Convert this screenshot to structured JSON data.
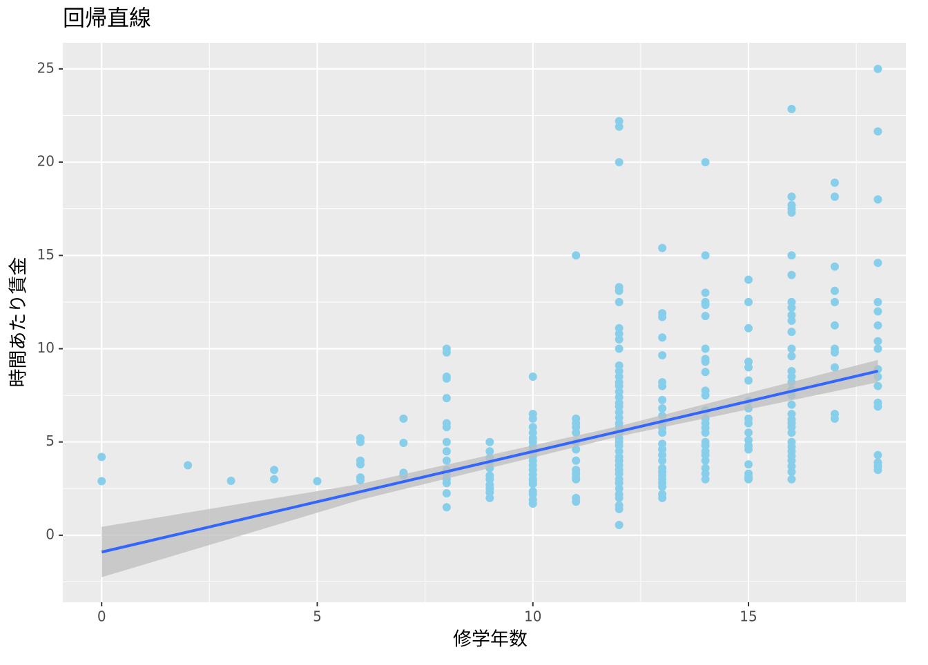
{
  "chart_data": {
    "type": "scatter",
    "title": "回帰直線",
    "x_label": "修学年数",
    "y_label": "時間あたり賃金",
    "color": "#87ceeb",
    "line_color": "#3366ff",
    "band_color": "#bdbdbd",
    "grid": true,
    "xlim": [
      -0.9,
      18.65
    ],
    "ylim": [
      -3.59,
      26.4
    ],
    "xticks": [
      0,
      5,
      10,
      15
    ],
    "yticks": [
      0,
      5,
      10,
      15,
      20,
      25
    ],
    "x_minor_ticks": [
      2.5,
      7.5,
      12.5,
      17.5
    ],
    "y_minor_ticks": [
      -2.5,
      2.5,
      7.5,
      12.5,
      17.5,
      22.5
    ],
    "fit": {
      "x": [
        0,
        18
      ],
      "y": [
        -0.9,
        8.8
      ]
    },
    "band": {
      "x": [
        0,
        6,
        12,
        18
      ],
      "lower": [
        -2.25,
        1.9,
        5.3,
        8.2
      ],
      "upper": [
        0.45,
        2.75,
        5.85,
        9.4
      ]
    },
    "x": [
      0,
      0,
      2,
      3,
      4,
      4,
      5,
      6,
      6,
      6,
      6,
      6,
      6,
      7,
      7,
      7,
      7,
      8,
      8,
      8,
      8,
      8,
      8,
      8,
      8,
      8,
      8,
      8,
      8,
      8,
      8,
      8,
      8,
      9,
      9,
      9,
      9,
      9,
      9,
      9,
      9,
      9,
      9,
      9,
      10,
      10,
      10,
      10,
      10,
      10,
      10,
      10,
      10,
      10,
      10,
      10,
      10,
      10,
      10,
      10,
      10,
      10,
      10,
      10,
      10,
      11,
      11,
      11,
      11,
      11,
      11,
      11,
      11,
      11,
      11,
      11,
      11,
      11,
      11,
      12,
      12,
      12,
      12,
      12,
      12,
      12,
      12,
      12,
      12,
      12,
      12,
      12,
      12,
      12,
      12,
      12,
      12,
      12,
      12,
      12,
      12,
      12,
      12,
      12,
      12,
      12,
      12,
      12,
      12,
      12,
      12,
      12,
      12,
      12,
      12,
      12,
      12,
      12,
      12,
      12,
      13,
      13,
      13,
      13,
      13,
      13,
      13,
      13,
      13,
      13,
      13,
      13,
      13,
      13,
      13,
      13,
      13,
      13,
      13,
      13,
      13,
      13,
      13,
      13,
      13,
      14,
      14,
      14,
      14,
      14,
      14,
      14,
      14,
      14,
      14,
      14,
      14,
      14,
      14,
      14,
      14,
      14,
      14,
      14,
      14,
      14,
      14,
      14,
      14,
      14,
      15,
      15,
      15,
      15,
      15,
      15,
      15,
      15,
      15,
      15,
      15,
      15,
      15,
      15,
      15,
      15,
      15,
      15,
      16,
      16,
      16,
      16,
      16,
      16,
      16,
      16,
      16,
      16,
      16,
      16,
      16,
      16,
      16,
      16,
      16,
      16,
      16,
      16,
      16,
      16,
      16,
      16,
      16,
      16,
      16,
      16,
      16,
      16,
      16,
      16,
      16,
      17,
      17,
      17,
      17,
      17,
      17,
      17,
      17,
      17,
      17,
      17,
      18,
      18,
      18,
      18,
      18,
      18,
      18,
      18,
      18,
      18,
      18,
      18,
      18,
      18,
      18,
      18,
      18,
      18
    ],
    "y": [
      4.2,
      2.9,
      3.75,
      2.92,
      3.5,
      3.0,
      2.9,
      5.2,
      5.0,
      4.0,
      3.8,
      3.1,
      2.95,
      6.25,
      4.95,
      3.35,
      3.2,
      10.0,
      9.8,
      8.5,
      8.4,
      7.35,
      6.0,
      5.8,
      5.0,
      4.5,
      4.0,
      3.5,
      3.3,
      3.0,
      2.8,
      2.25,
      1.5,
      5.0,
      4.5,
      4.15,
      3.9,
      3.6,
      3.2,
      3.0,
      2.7,
      2.5,
      2.3,
      2.0,
      8.5,
      6.5,
      6.25,
      5.8,
      5.5,
      5.2,
      5.0,
      4.75,
      4.5,
      4.25,
      4.0,
      3.75,
      3.5,
      3.25,
      3.0,
      2.9,
      2.75,
      2.35,
      2.2,
      1.9,
      1.7,
      15.0,
      6.25,
      6.0,
      5.8,
      5.5,
      5.0,
      4.6,
      4.0,
      3.5,
      3.3,
      3.1,
      3.0,
      2.0,
      1.8,
      22.2,
      21.9,
      20.0,
      13.3,
      13.1,
      12.5,
      11.1,
      10.8,
      10.5,
      10.0,
      9.1,
      8.8,
      8.5,
      8.2,
      8.0,
      7.7,
      7.4,
      7.1,
      6.9,
      6.6,
      6.3,
      6.0,
      5.8,
      5.5,
      5.2,
      5.0,
      4.8,
      4.5,
      4.2,
      4.0,
      3.75,
      3.5,
      3.3,
      3.0,
      2.8,
      2.5,
      2.2,
      2.0,
      1.6,
      1.4,
      0.55,
      15.4,
      11.9,
      11.7,
      10.6,
      9.65,
      8.2,
      8.0,
      7.25,
      6.8,
      6.4,
      6.0,
      5.75,
      5.5,
      4.9,
      4.6,
      4.3,
      4.0,
      3.6,
      3.4,
      3.2,
      3.0,
      2.8,
      2.6,
      2.2,
      2.0,
      20.0,
      15.0,
      13.0,
      12.5,
      12.35,
      11.75,
      10.0,
      9.45,
      9.3,
      8.75,
      7.75,
      7.5,
      6.7,
      6.25,
      6.0,
      5.75,
      5.5,
      5.0,
      4.8,
      4.5,
      4.3,
      4.0,
      3.6,
      3.3,
      3.0,
      13.7,
      12.5,
      11.1,
      9.3,
      9.0,
      8.3,
      7.2,
      6.8,
      6.25,
      6.0,
      5.5,
      5.1,
      4.8,
      4.6,
      3.8,
      3.3,
      3.1,
      3.0,
      22.85,
      18.15,
      17.7,
      17.5,
      17.3,
      15.0,
      13.95,
      12.5,
      12.2,
      11.8,
      11.5,
      10.9,
      10.0,
      9.6,
      8.8,
      8.5,
      8.2,
      7.8,
      7.5,
      7.0,
      6.5,
      6.2,
      6.0,
      5.8,
      5.5,
      5.0,
      4.75,
      4.5,
      4.25,
      4.0,
      3.7,
      3.4,
      3.0,
      18.9,
      18.15,
      14.4,
      13.1,
      12.5,
      11.25,
      10.0,
      9.8,
      9.0,
      6.5,
      6.25,
      25.0,
      21.65,
      18.0,
      14.6,
      12.5,
      12.0,
      11.25,
      10.4,
      10.0,
      8.9,
      8.5,
      8.0,
      7.1,
      6.9,
      4.3,
      3.9,
      3.7,
      3.5
    ]
  }
}
